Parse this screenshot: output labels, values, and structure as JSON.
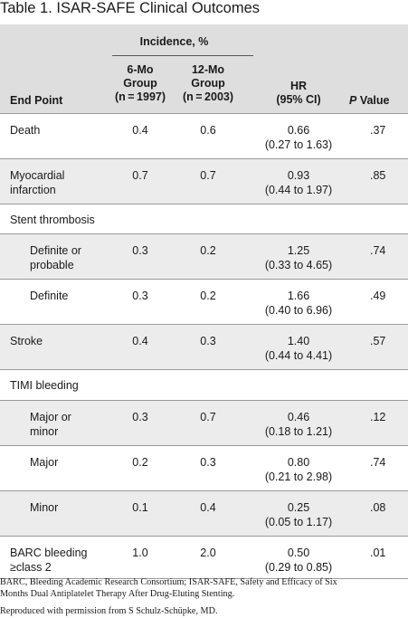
{
  "table": {
    "label": "Table 1.",
    "title": "ISAR-SAFE Clinical Outcomes",
    "header": {
      "incidence": "Incidence, %",
      "end_point": "End Point",
      "g6": [
        "6-Mo",
        "Group",
        "(n = 1997)"
      ],
      "g12": [
        "12-Mo",
        "Group",
        "(n = 2003)"
      ],
      "hr": [
        "HR",
        "(95% CI)"
      ],
      "p_ital": "P",
      "p_rest": " Value"
    },
    "rows": [
      {
        "end": [
          "Death"
        ],
        "g6": "0.4",
        "g12": "0.6",
        "hr": "0.66",
        "ci": "(0.27 to 1.63)",
        "p": ".37"
      },
      {
        "end": [
          "Myocardial",
          "infarction"
        ],
        "g6": "0.7",
        "g12": "0.7",
        "hr": "0.93",
        "ci": "(0.44 to 1.97)",
        "p": ".85"
      },
      {
        "end": [
          "Stent thrombosis"
        ],
        "g6": "",
        "g12": "",
        "hr": "",
        "ci": "",
        "p": ""
      },
      {
        "end": [
          "Definite or",
          "probable"
        ],
        "g6": "0.3",
        "g12": "0.2",
        "hr": "1.25",
        "ci": "(0.33 to 4.65)",
        "p": ".74"
      },
      {
        "end": [
          "Definite"
        ],
        "g6": "0.3",
        "g12": "0.2",
        "hr": "1.66",
        "ci": "(0.40 to 6.96)",
        "p": ".49"
      },
      {
        "end": [
          "Stroke"
        ],
        "g6": "0.4",
        "g12": "0.3",
        "hr": "1.40",
        "ci": "(0.44 to 4.41)",
        "p": ".57"
      },
      {
        "end": [
          "TIMI bleeding"
        ],
        "g6": "",
        "g12": "",
        "hr": "",
        "ci": "",
        "p": ""
      },
      {
        "end": [
          "Major or",
          "minor"
        ],
        "g6": "0.3",
        "g12": "0.7",
        "hr": "0.46",
        "ci": "(0.18 to 1.21)",
        "p": ".12"
      },
      {
        "end": [
          "Major"
        ],
        "g6": "0.2",
        "g12": "0.3",
        "hr": "0.80",
        "ci": "(0.21 to 2.98)",
        "p": ".74"
      },
      {
        "end": [
          "Minor"
        ],
        "g6": "0.1",
        "g12": "0.4",
        "hr": "0.25",
        "ci": "(0.05 to 1.17)",
        "p": ".08"
      },
      {
        "end": [
          "BARC bleeding",
          "≥class 2"
        ],
        "g6": "1.0",
        "g12": "2.0",
        "hr": "0.50",
        "ci": "(0.29 to 0.85)",
        "p": ".01"
      }
    ]
  },
  "footnote": {
    "abbrev_1": "BARC, Bleeding Academic Research Consortium; ISAR-SAFE, Safety and Efficacy of Six",
    "abbrev_2": "Months Dual Antiplatelet Therapy After Drug-Eluting Stenting.",
    "credit": "Reproduced with permission from S Schulz-Schüpke, MD."
  }
}
